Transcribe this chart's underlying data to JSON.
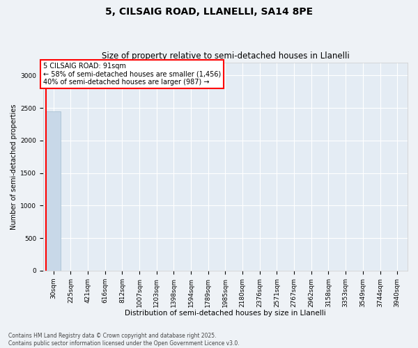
{
  "title1": "5, CILSAIG ROAD, LLANELLI, SA14 8PE",
  "title2": "Size of property relative to semi-detached houses in Llanelli",
  "xlabel": "Distribution of semi-detached houses by size in Llanelli",
  "ylabel": "Number of semi-detached properties",
  "categories": [
    "30sqm",
    "225sqm",
    "421sqm",
    "616sqm",
    "812sqm",
    "1007sqm",
    "1203sqm",
    "1398sqm",
    "1594sqm",
    "1789sqm",
    "1985sqm",
    "2180sqm",
    "2376sqm",
    "2571sqm",
    "2767sqm",
    "2962sqm",
    "3158sqm",
    "3353sqm",
    "3549sqm",
    "3744sqm",
    "3940sqm"
  ],
  "values": [
    2443,
    5,
    2,
    1,
    0,
    0,
    1,
    0,
    0,
    0,
    0,
    0,
    0,
    0,
    0,
    0,
    0,
    0,
    0,
    0,
    0
  ],
  "bar_color": "#c8d8e8",
  "bar_edge_color": "#a0bcd0",
  "annotation_box_text": "5 CILSAIG ROAD: 91sqm\n← 58% of semi-detached houses are smaller (1,456)\n40% of semi-detached houses are larger (987) →",
  "ylim": [
    0,
    3200
  ],
  "yticks": [
    0,
    500,
    1000,
    1500,
    2000,
    2500,
    3000
  ],
  "footer1": "Contains HM Land Registry data © Crown copyright and database right 2025.",
  "footer2": "Contains public sector information licensed under the Open Government Licence v3.0.",
  "bg_color": "#eef2f6",
  "plot_bg_color": "#e4ecf4",
  "grid_color": "#ffffff",
  "title1_fontsize": 10,
  "title2_fontsize": 8.5,
  "ylabel_fontsize": 7,
  "xlabel_fontsize": 7.5,
  "tick_fontsize": 6.5,
  "annotation_fontsize": 7,
  "footer_fontsize": 5.5
}
